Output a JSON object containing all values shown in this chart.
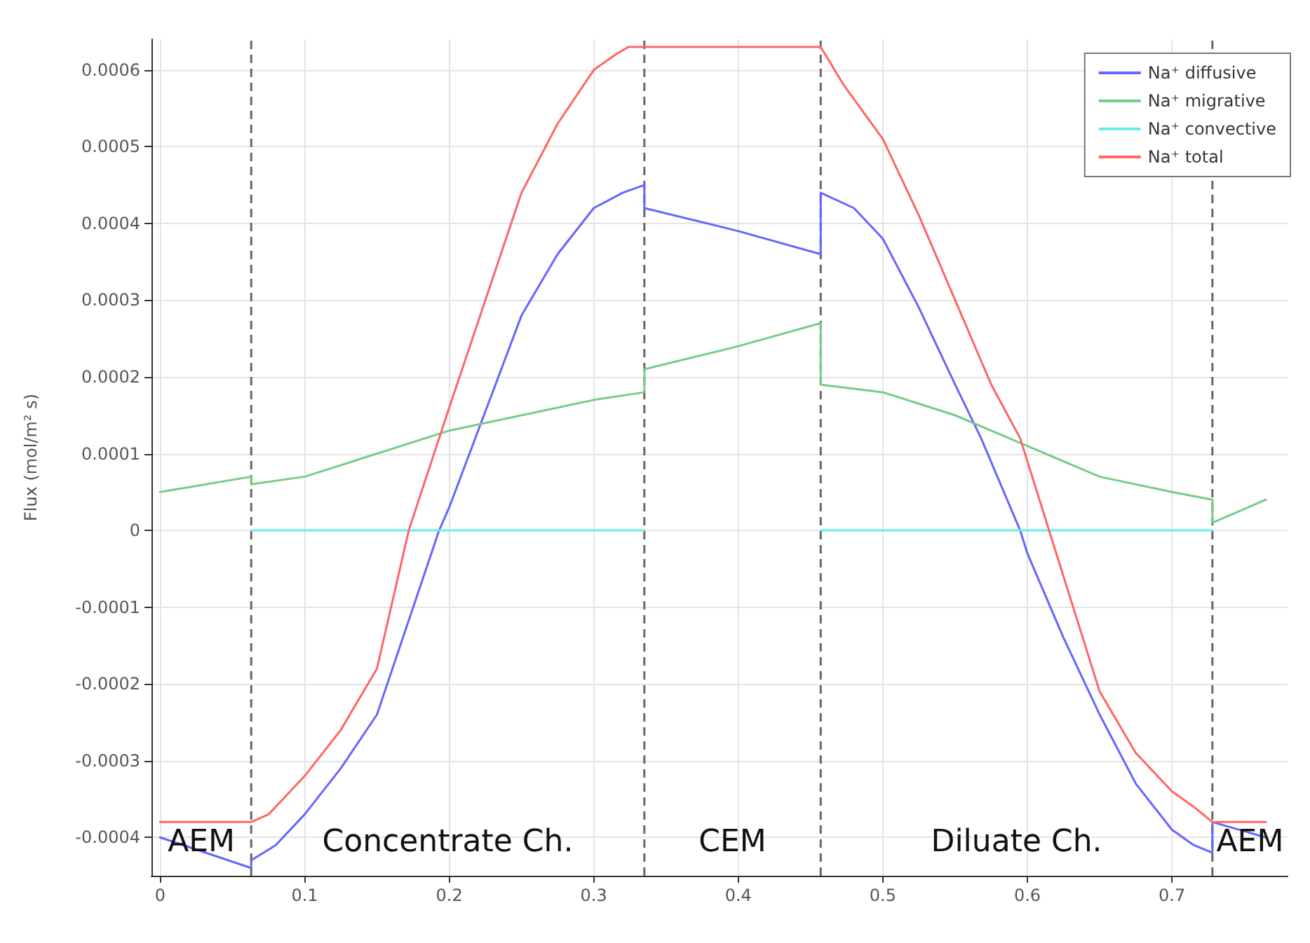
{
  "chart_data": {
    "type": "line",
    "ylabel": "Flux (mol/m² s)",
    "xlim": [
      -0.006,
      0.78
    ],
    "ylim": [
      -0.00045,
      0.00064
    ],
    "xticks": [
      0,
      0.1,
      0.2,
      0.3,
      0.4,
      0.5,
      0.6,
      0.7
    ],
    "yticks": [
      -0.0004,
      -0.0003,
      -0.0002,
      -0.0001,
      0,
      0.0001,
      0.0002,
      0.0003,
      0.0004,
      0.0005,
      0.0006
    ],
    "grid": true,
    "legend": "top right",
    "marker": "none",
    "line_style": "solid",
    "series": [
      {
        "name": "Na⁺ diffusive",
        "color": "#6666ff",
        "x": [
          0,
          0.063,
          0.063,
          0.08,
          0.1,
          0.125,
          0.15,
          0.193,
          0.2,
          0.25,
          0.275,
          0.3,
          0.32,
          0.335,
          0.335,
          0.4,
          0.457,
          0.457,
          0.48,
          0.5,
          0.525,
          0.55,
          0.568,
          0.595,
          0.6,
          0.625,
          0.65,
          0.675,
          0.7,
          0.715,
          0.728,
          0.728,
          0.765
        ],
        "values": [
          -0.0004,
          -0.00044,
          -0.00043,
          -0.00041,
          -0.00037,
          -0.00031,
          -0.00024,
          0,
          3e-05,
          0.00028,
          0.00036,
          0.00042,
          0.00044,
          0.00045,
          0.00042,
          0.00039,
          0.00036,
          0.00044,
          0.00042,
          0.00038,
          0.00029,
          0.00019,
          0.00012,
          0,
          -3e-05,
          -0.00014,
          -0.00024,
          -0.00033,
          -0.00039,
          -0.00041,
          -0.00042,
          -0.00038,
          -0.0004
        ]
      },
      {
        "name": "Na⁺ migrative",
        "color": "#77cc88",
        "x": [
          0,
          0.063,
          0.063,
          0.1,
          0.15,
          0.2,
          0.25,
          0.3,
          0.335,
          0.335,
          0.4,
          0.457,
          0.457,
          0.5,
          0.55,
          0.6,
          0.65,
          0.7,
          0.728,
          0.728,
          0.765
        ],
        "values": [
          5e-05,
          7e-05,
          6e-05,
          7e-05,
          0.0001,
          0.00013,
          0.00015,
          0.00017,
          0.00018,
          0.00021,
          0.00024,
          0.00027,
          0.00019,
          0.00018,
          0.00015,
          0.00011,
          7e-05,
          5e-05,
          4e-05,
          1e-05,
          4e-05
        ]
      },
      {
        "name": "Na⁺ convective",
        "color": "#66eeee",
        "x": [
          0.063,
          0.1,
          0.15,
          0.2,
          0.25,
          0.3,
          0.335,
          0.4,
          0.457,
          0.5,
          0.6,
          0.728
        ],
        "values": [
          0,
          0,
          0,
          0,
          0,
          0,
          0,
          null,
          0,
          0,
          0,
          0
        ]
      },
      {
        "name": "Na⁺ total",
        "color": "#ff6666",
        "x": [
          0,
          0.063,
          0.075,
          0.09,
          0.1,
          0.125,
          0.15,
          0.172,
          0.2,
          0.25,
          0.275,
          0.3,
          0.315,
          0.324,
          0.457,
          0.473,
          0.5,
          0.525,
          0.55,
          0.575,
          0.595,
          0.615,
          0.65,
          0.675,
          0.7,
          0.715,
          0.728,
          0.765
        ],
        "values": [
          -0.00038,
          -0.00038,
          -0.00037,
          -0.00034,
          -0.00032,
          -0.00026,
          -0.00018,
          0,
          0.00016,
          0.00044,
          0.00053,
          0.0006,
          0.00062,
          0.00063,
          0.00063,
          0.00058,
          0.00051,
          0.00041,
          0.0003,
          0.00019,
          0.00012,
          0,
          -0.00021,
          -0.00029,
          -0.00034,
          -0.00036,
          -0.00038,
          -0.00038
        ]
      }
    ],
    "ref_lines": [
      {
        "axis": "x",
        "value": 0.063,
        "color": "#666666",
        "line_style": "dashed"
      },
      {
        "axis": "x",
        "value": 0.335,
        "color": "#666666",
        "line_style": "dashed"
      },
      {
        "axis": "x",
        "value": 0.457,
        "color": "#666666",
        "line_style": "dashed"
      },
      {
        "axis": "x",
        "value": 0.728,
        "color": "#666666",
        "line_style": "dashed"
      }
    ],
    "annotations": [
      "AEM",
      "Concentrate Ch.",
      "CEM",
      "Diluate Ch.",
      "AEM"
    ]
  }
}
